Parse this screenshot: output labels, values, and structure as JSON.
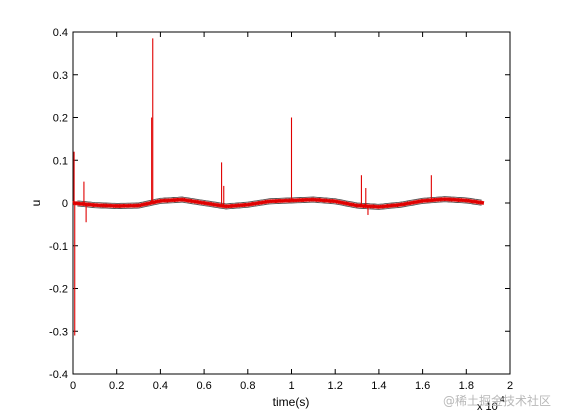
{
  "chart_data": {
    "type": "line",
    "title": "",
    "xlabel": "time(s)",
    "ylabel": "u",
    "x_exponent_label": "x 10",
    "x_exponent_power": "4",
    "xlim": [
      0,
      2
    ],
    "ylim": [
      -0.4,
      0.4
    ],
    "x_ticks": [
      "0",
      "0.2",
      "0.4",
      "0.6",
      "0.8",
      "1",
      "1.2",
      "1.4",
      "1.6",
      "1.8",
      "2"
    ],
    "y_ticks": [
      "-0.4",
      "-0.3",
      "-0.2",
      "-0.1",
      "0",
      "0.1",
      "0.2",
      "0.3",
      "0.4"
    ],
    "grid": false,
    "line_color": "#e00000",
    "secondary_line_color": "#555555",
    "baseline": {
      "x": [
        0.0,
        0.1,
        0.2,
        0.3,
        0.4,
        0.5,
        0.6,
        0.7,
        0.8,
        0.9,
        1.0,
        1.1,
        1.2,
        1.3,
        1.4,
        1.5,
        1.6,
        1.7,
        1.8,
        1.88
      ],
      "values": [
        0.0,
        -0.005,
        -0.007,
        -0.006,
        0.005,
        0.008,
        0.0,
        -0.008,
        -0.004,
        0.004,
        0.006,
        0.008,
        0.004,
        -0.006,
        -0.009,
        -0.004,
        0.005,
        0.009,
        0.006,
        0.0
      ]
    },
    "spikes": [
      {
        "x": 0.005,
        "value": 0.12
      },
      {
        "x": 0.008,
        "value": -0.31
      },
      {
        "x": 0.05,
        "value": 0.05
      },
      {
        "x": 0.06,
        "value": -0.045
      },
      {
        "x": 0.36,
        "value": 0.2
      },
      {
        "x": 0.365,
        "value": 0.385
      },
      {
        "x": 0.68,
        "value": 0.095
      },
      {
        "x": 0.69,
        "value": 0.04
      },
      {
        "x": 1.0,
        "value": 0.2
      },
      {
        "x": 1.32,
        "value": 0.065
      },
      {
        "x": 1.34,
        "value": 0.035
      },
      {
        "x": 1.35,
        "value": -0.028
      },
      {
        "x": 1.64,
        "value": 0.065
      }
    ]
  },
  "watermark": "@稀土掘金技术社区"
}
